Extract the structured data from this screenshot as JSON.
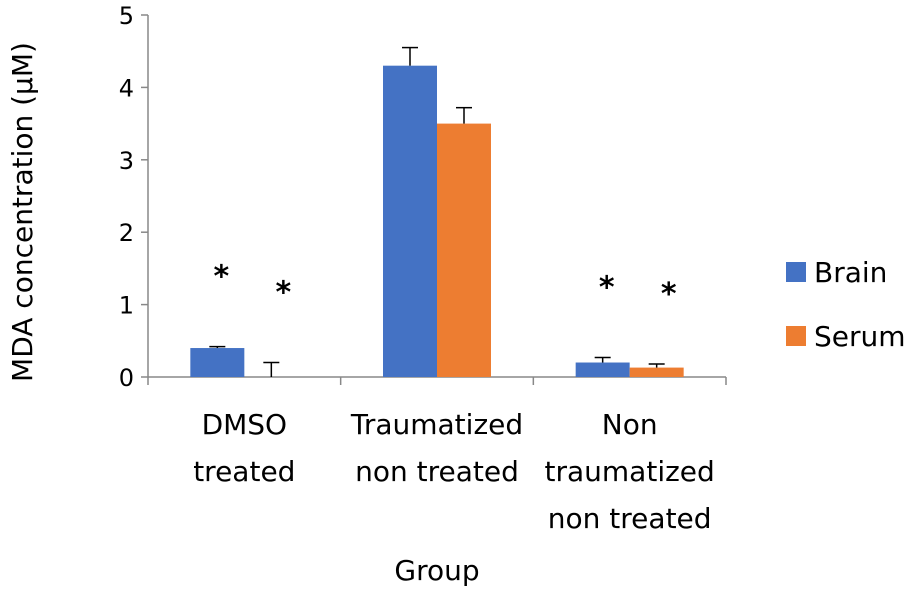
{
  "chart_data": {
    "type": "bar",
    "title": "",
    "xlabel": "Group",
    "ylabel": "MDA concentration (µM)",
    "ylim": [
      0,
      5
    ],
    "yticks": [
      "0",
      "1",
      "2",
      "3",
      "4",
      "5"
    ],
    "categories": [
      [
        "DMSO",
        "treated"
      ],
      [
        "Traumatized",
        "non treated"
      ],
      [
        "Non",
        "traumatized",
        "non treated"
      ]
    ],
    "series": [
      {
        "name": "Brain",
        "color": "#4472C4",
        "values": [
          0.4,
          4.3,
          0.2
        ],
        "errors": [
          0.02,
          0.25,
          0.07
        ],
        "significance": [
          "*",
          "",
          "*"
        ]
      },
      {
        "name": "Serum",
        "color": "#ED7D31",
        "values": [
          0.0,
          3.5,
          0.13
        ],
        "errors": [
          0.2,
          0.22,
          0.05
        ],
        "significance": [
          "*",
          "",
          "*"
        ]
      }
    ],
    "legend": "right",
    "grid": false
  }
}
